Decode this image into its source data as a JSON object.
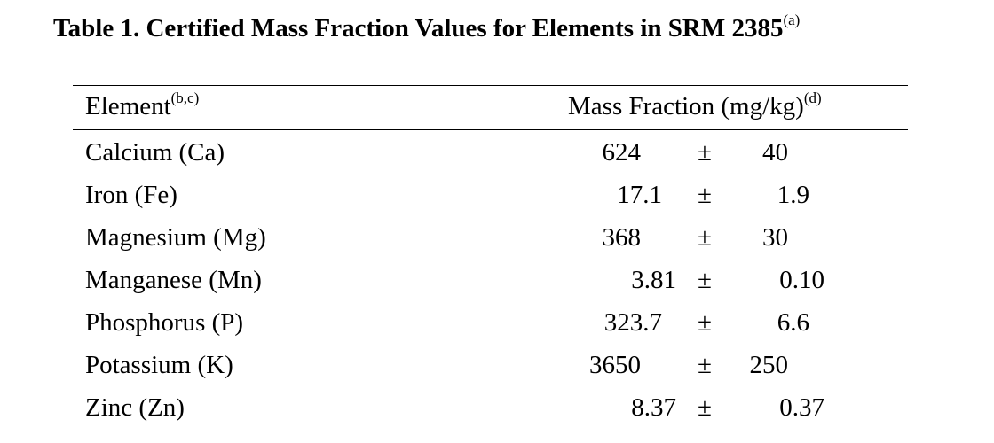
{
  "table": {
    "title": "Table 1.  Certified Mass Fraction Values for Elements in SRM 2385",
    "title_note": "(a)",
    "header": {
      "element": "Element",
      "element_note": "(b,c)",
      "mass_fraction": "Mass Fraction (mg/kg)",
      "mass_fraction_note": "(d)"
    },
    "pm_symbol": "±",
    "rows": [
      {
        "element": "Calcium (Ca)",
        "value": "624",
        "uncertainty": "40"
      },
      {
        "element": "Iron (Fe)",
        "value": "17.1",
        "uncertainty": "1.9"
      },
      {
        "element": "Magnesium (Mg)",
        "value": "368",
        "uncertainty": "30"
      },
      {
        "element": "Manganese (Mn)",
        "value": "3.81",
        "uncertainty": "0.10"
      },
      {
        "element": "Phosphorus (P)",
        "value": "323.7",
        "uncertainty": "6.6"
      },
      {
        "element": "Potassium (K)",
        "value": "3650",
        "uncertainty": "250"
      },
      {
        "element": "Zinc (Zn)",
        "value": "8.37",
        "uncertainty": "0.37"
      }
    ]
  }
}
